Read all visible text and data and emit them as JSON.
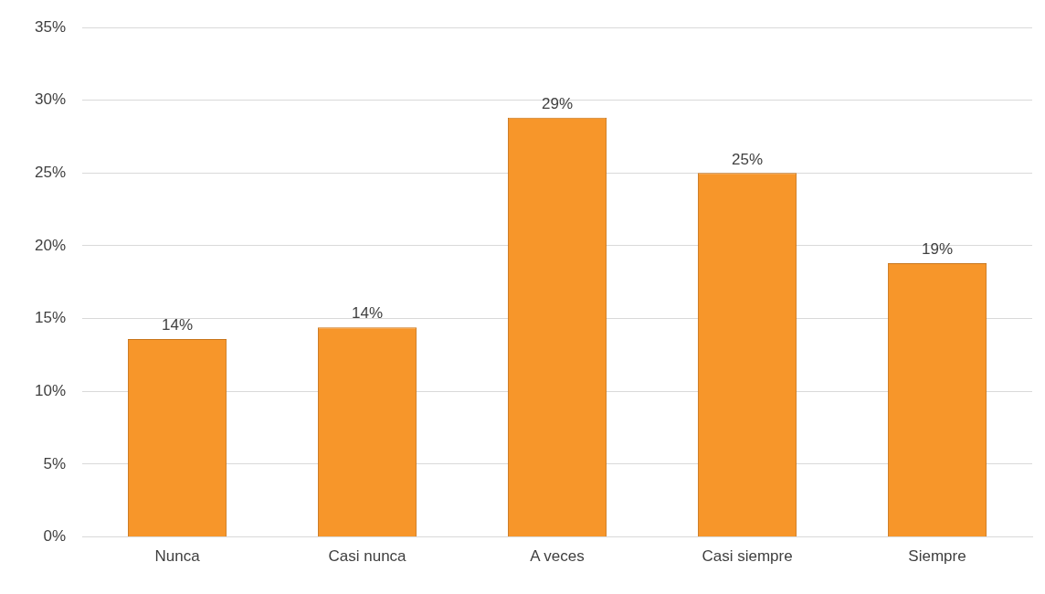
{
  "chart_data": {
    "type": "bar",
    "categories": [
      "Nunca",
      "Casi nunca",
      "A veces",
      "Casi siempre",
      "Siempre"
    ],
    "values": [
      13.6,
      14.4,
      28.8,
      25,
      18.8
    ],
    "color": "#f7962a",
    "value_labels": [
      "14%",
      "14%",
      "29%",
      "25%",
      "19%"
    ],
    "ylim": [
      0,
      35
    ],
    "yticks": [
      {
        "value": 0,
        "label": "0%"
      },
      {
        "value": 5,
        "label": "5%"
      },
      {
        "value": 10,
        "label": "10%"
      },
      {
        "value": 15,
        "label": "15%"
      },
      {
        "value": 20,
        "label": "20%"
      },
      {
        "value": 25,
        "label": "25%"
      },
      {
        "value": 30,
        "label": "30%"
      },
      {
        "value": 35,
        "label": "35%"
      }
    ],
    "grid": "y",
    "legend": false
  }
}
